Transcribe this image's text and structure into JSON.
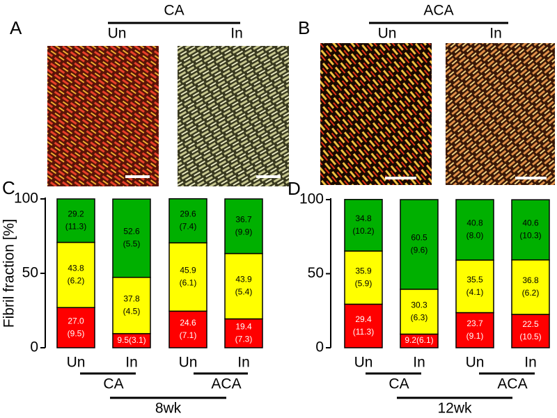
{
  "panels": [
    {
      "label": "A",
      "group": "CA",
      "conditions": [
        "Un",
        "In"
      ]
    },
    {
      "label": "B",
      "group": "ACA",
      "conditions": [
        "Un",
        "In"
      ]
    }
  ],
  "chart_data": [
    {
      "type": "bar",
      "stacked": true,
      "panel_label": "C",
      "ylabel": "Fibril fraction [%]",
      "categories": [
        "Un",
        "In",
        "Un",
        "In"
      ],
      "groups": [
        "CA",
        "ACA"
      ],
      "timepoint": "8wk",
      "ylim": [
        0,
        100
      ],
      "yticks": [
        0,
        50,
        100
      ],
      "series": [
        {
          "color": "#ff0000",
          "label_color": "#ffffff",
          "values": [
            27.0,
            9.5,
            24.6,
            19.4
          ],
          "value_labels": [
            "27.0",
            "9.5",
            "24.6",
            "19.4"
          ],
          "sd_labels": [
            "(9.5)",
            "(3.1)",
            "(7.1)",
            "(7.3)"
          ]
        },
        {
          "color": "#ffff00",
          "label_color": "#000000",
          "values": [
            43.8,
            37.8,
            45.9,
            43.9
          ],
          "value_labels": [
            "43.8",
            "37.8",
            "45.9",
            "43.9"
          ],
          "sd_labels": [
            "(6.2)",
            "(4.5)",
            "(6.1)",
            "(5.4)"
          ]
        },
        {
          "color": "#00b000",
          "label_color": "#000000",
          "values": [
            29.2,
            52.6,
            29.6,
            36.7
          ],
          "value_labels": [
            "29.2",
            "52.6",
            "29.6",
            "36.7"
          ],
          "sd_labels": [
            "(11.3)",
            "(5.5)",
            "(7.4)",
            "(9.9)"
          ]
        }
      ]
    },
    {
      "type": "bar",
      "stacked": true,
      "panel_label": "D",
      "categories": [
        "Un",
        "In",
        "Un",
        "In"
      ],
      "groups": [
        "CA",
        "ACA"
      ],
      "timepoint": "12wk",
      "ylim": [
        0,
        100
      ],
      "yticks": [
        0,
        50,
        100
      ],
      "series": [
        {
          "color": "#ff0000",
          "label_color": "#ffffff",
          "values": [
            29.4,
            9.2,
            23.7,
            22.5
          ],
          "value_labels": [
            "29.4",
            "9.2",
            "23.7",
            "22.5"
          ],
          "sd_labels": [
            "(11.3)",
            "(6.1)",
            "(9.1)",
            "(10.5)"
          ]
        },
        {
          "color": "#ffff00",
          "label_color": "#000000",
          "values": [
            35.9,
            30.3,
            35.5,
            36.8
          ],
          "value_labels": [
            "35.9",
            "30.3",
            "35.5",
            "36.8"
          ],
          "sd_labels": [
            "(5.9)",
            "(6.3)",
            "(4.1)",
            "(6.2)"
          ]
        },
        {
          "color": "#00b000",
          "label_color": "#000000",
          "values": [
            34.8,
            60.5,
            40.8,
            40.6
          ],
          "value_labels": [
            "34.8",
            "60.5",
            "40.8",
            "40.6"
          ],
          "sd_labels": [
            "(10.2)",
            "(9.6)",
            "(8.0)",
            "(10.3)"
          ]
        }
      ]
    }
  ]
}
